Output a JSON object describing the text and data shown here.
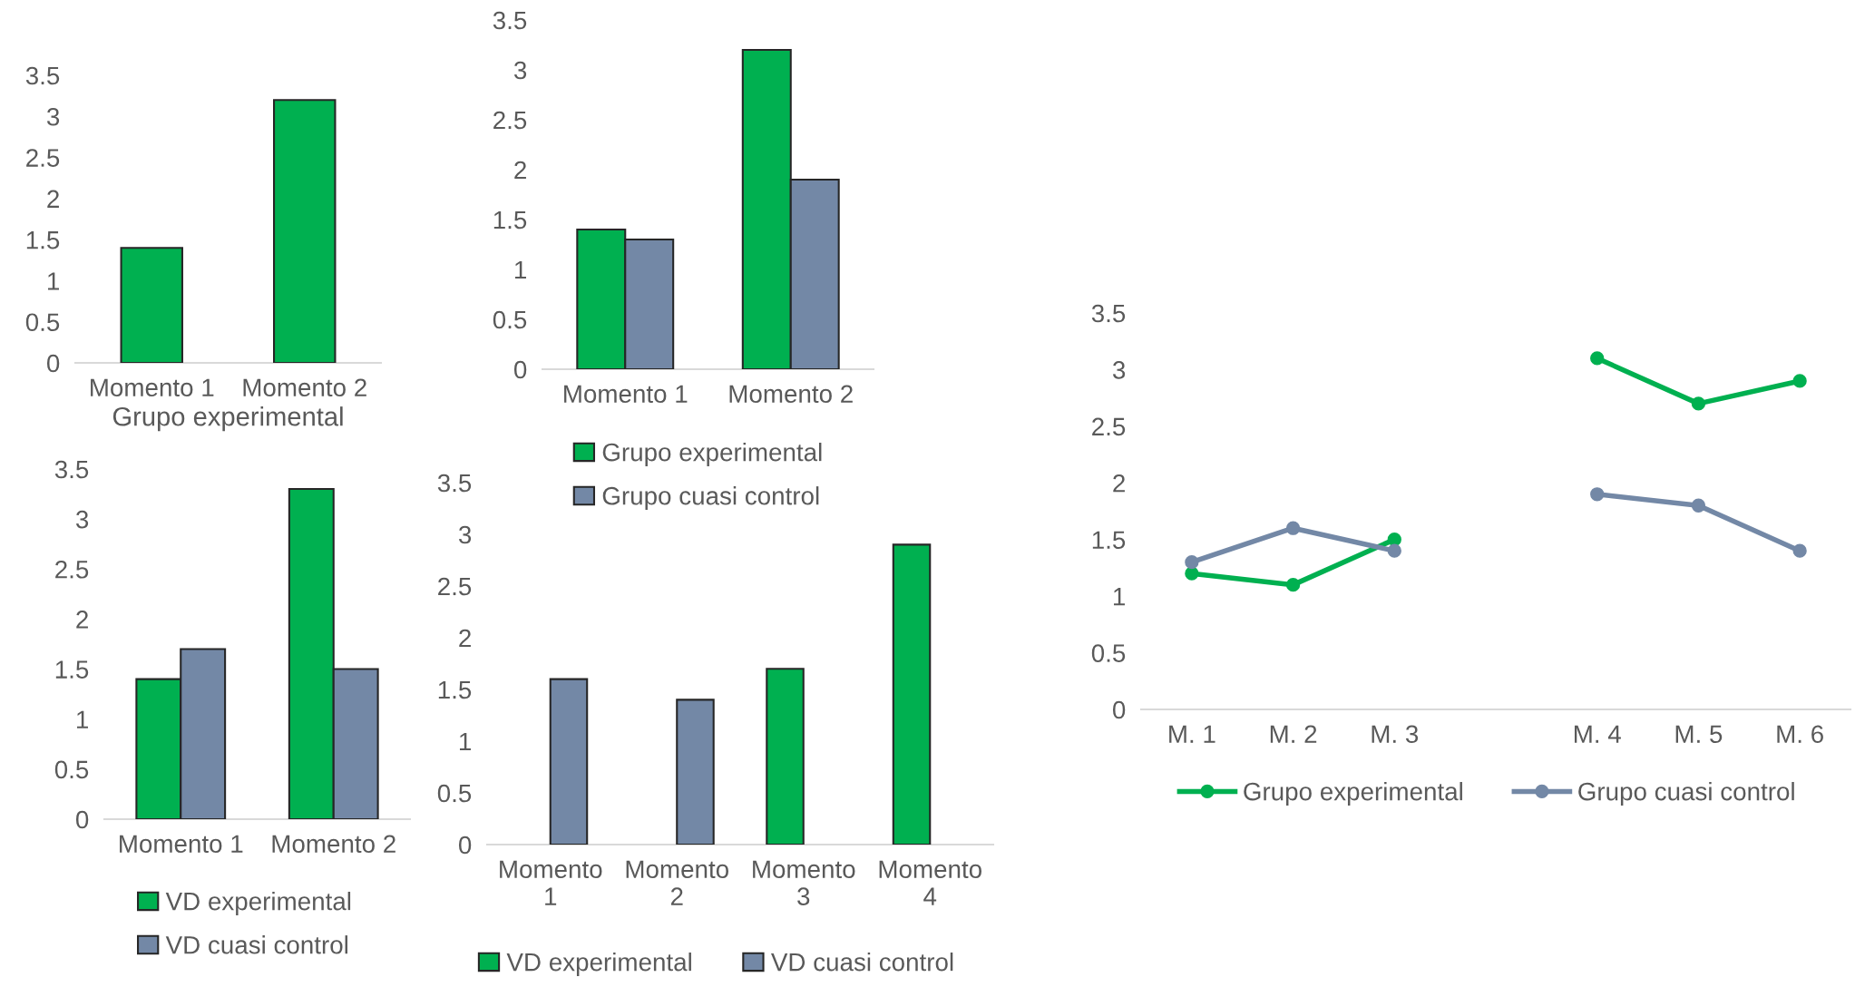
{
  "chart_data": [
    {
      "type": "bar",
      "xlabel": "Grupo experimental",
      "categories": [
        "Momento 1",
        "Momento 2"
      ],
      "series": [
        {
          "color": "#00b050",
          "values": [
            1.4,
            3.2
          ]
        }
      ],
      "ylim": [
        0,
        3.5
      ],
      "yticks": [
        0,
        0.5,
        1,
        1.5,
        2,
        2.5,
        3,
        3.5
      ],
      "grid": false,
      "legend": false
    },
    {
      "type": "bar",
      "categories": [
        "Momento 1",
        "Momento 2"
      ],
      "series": [
        {
          "name": "Grupo experimental",
          "color": "#00b050",
          "values": [
            1.4,
            3.2
          ]
        },
        {
          "name": "Grupo cuasi control",
          "color": "#7388a6",
          "values": [
            1.3,
            1.9
          ]
        }
      ],
      "ylim": [
        0,
        3.5
      ],
      "yticks": [
        0,
        0.5,
        1,
        1.5,
        2,
        2.5,
        3,
        3.5
      ],
      "grid": false,
      "legend": "bottom"
    },
    {
      "type": "bar",
      "categories": [
        "Momento 1",
        "Momento 2"
      ],
      "series": [
        {
          "name": "VD experimental",
          "color": "#00b050",
          "values": [
            1.4,
            3.3
          ]
        },
        {
          "name": "VD cuasi control",
          "color": "#7388a6",
          "values": [
            1.7,
            1.5
          ]
        }
      ],
      "ylim": [
        0,
        3.5
      ],
      "yticks": [
        0,
        0.5,
        1,
        1.5,
        2,
        2.5,
        3,
        3.5
      ],
      "grid": false,
      "legend": "bottom"
    },
    {
      "type": "bar",
      "categories": [
        "Momento 1",
        "Momento 2",
        "Momento 3",
        "Momento 4"
      ],
      "series": [
        {
          "name": "VD experimental",
          "color": "#00b050",
          "values": [
            null,
            null,
            1.7,
            2.9
          ]
        },
        {
          "name": "VD cuasi control",
          "color": "#7388a6",
          "values": [
            1.6,
            1.4,
            null,
            null
          ]
        }
      ],
      "ylim": [
        0,
        3.5
      ],
      "yticks": [
        0,
        0.5,
        1,
        1.5,
        2,
        2.5,
        3,
        3.5
      ],
      "grid": false,
      "legend": "bottom"
    },
    {
      "type": "line",
      "categories": [
        "M. 1",
        "M. 2",
        "M. 3",
        null,
        "M. 4",
        "M. 5",
        "M. 6"
      ],
      "series": [
        {
          "name": "Grupo experimental",
          "color": "#00b050",
          "values": [
            1.2,
            1.1,
            1.5,
            null,
            3.1,
            2.7,
            2.9
          ]
        },
        {
          "name": "Grupo cuasi control",
          "color": "#7388a6",
          "values": [
            1.3,
            1.6,
            1.4,
            null,
            1.9,
            1.8,
            1.4
          ]
        }
      ],
      "ylim": [
        0,
        3.5
      ],
      "yticks": [
        0,
        0.5,
        1,
        1.5,
        2,
        2.5,
        3,
        3.5
      ],
      "grid": false,
      "legend": "bottom",
      "marker": "circle",
      "line_style": "solid"
    }
  ]
}
